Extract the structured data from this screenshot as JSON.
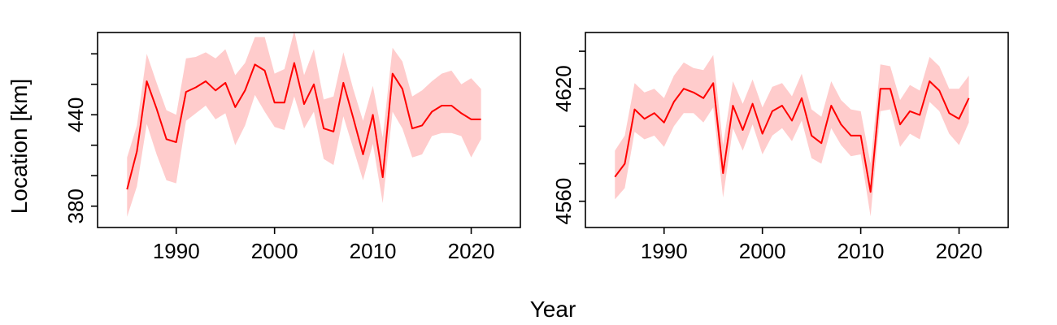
{
  "labels": {
    "xlabel": "Year",
    "ylabel": "Location [km]"
  },
  "colors": {
    "line": "#ff0000",
    "band": "#ffcccc"
  },
  "chart_data": [
    {
      "type": "line",
      "xlim": [
        1982,
        2025
      ],
      "ylim": [
        366,
        494
      ],
      "x_ticks": [
        1990,
        2000,
        2010,
        2020
      ],
      "x_tick_labels": [
        "1990",
        "2000",
        "2010",
        "2020"
      ],
      "y_ticks": [
        380,
        400,
        420,
        440,
        460,
        480
      ],
      "y_tick_labels": [
        "380",
        "",
        "",
        "440",
        "",
        ""
      ],
      "x": [
        1985,
        1986,
        1987,
        1988,
        1989,
        1990,
        1991,
        1992,
        1993,
        1994,
        1995,
        1996,
        1997,
        1998,
        1999,
        2000,
        2001,
        2002,
        2003,
        2004,
        2005,
        2006,
        2007,
        2008,
        2009,
        2010,
        2011,
        2012,
        2013,
        2014,
        2015,
        2016,
        2017,
        2018,
        2019,
        2020,
        2021
      ],
      "series": [
        {
          "values": [
            391,
            416,
            462,
            444,
            424,
            422,
            455,
            458,
            462,
            456,
            461,
            445,
            456,
            473,
            469,
            448,
            448,
            474,
            447,
            460,
            431,
            429,
            461,
            438,
            414,
            440,
            399,
            467,
            457,
            431,
            433,
            442,
            446,
            446,
            441,
            437,
            437
          ],
          "lower": [
            373,
            393,
            434,
            414,
            397,
            395,
            436,
            441,
            446,
            437,
            441,
            420,
            433,
            453,
            442,
            432,
            430,
            452,
            431,
            442,
            411,
            407,
            439,
            418,
            397,
            421,
            382,
            442,
            431,
            412,
            414,
            426,
            428,
            428,
            426,
            412,
            424
          ],
          "upper": [
            412,
            433,
            480,
            461,
            443,
            440,
            477,
            478,
            481,
            477,
            483,
            466,
            474,
            491,
            491,
            467,
            470,
            495,
            466,
            483,
            450,
            452,
            481,
            457,
            436,
            459,
            425,
            484,
            475,
            452,
            456,
            462,
            467,
            469,
            460,
            464,
            457
          ]
        }
      ]
    },
    {
      "type": "line",
      "xlim": [
        1982,
        2025
      ],
      "ylim": [
        4546,
        4650
      ],
      "x_ticks": [
        1990,
        2000,
        2010,
        2020
      ],
      "x_tick_labels": [
        "1990",
        "2000",
        "2010",
        "2020"
      ],
      "y_ticks": [
        4560,
        4580,
        4600,
        4620,
        4640
      ],
      "y_tick_labels": [
        "4560",
        "",
        "",
        "4620",
        ""
      ],
      "x": [
        1985,
        1986,
        1987,
        1988,
        1989,
        1990,
        1991,
        1992,
        1993,
        1994,
        1995,
        1996,
        1997,
        1998,
        1999,
        2000,
        2001,
        2002,
        2003,
        2004,
        2005,
        2006,
        2007,
        2008,
        2009,
        2010,
        2011,
        2012,
        2013,
        2014,
        2015,
        2016,
        2017,
        2018,
        2019,
        2020,
        2021
      ],
      "series": [
        {
          "values": [
            4573,
            4580,
            4609,
            4604,
            4607,
            4602,
            4613,
            4620,
            4618,
            4615,
            4623,
            4575,
            4611,
            4598,
            4612,
            4596,
            4608,
            4611,
            4603,
            4615,
            4595,
            4591,
            4611,
            4601,
            4595,
            4595,
            4565,
            4620,
            4620,
            4601,
            4608,
            4606,
            4624,
            4619,
            4607,
            4604,
            4615
          ],
          "lower": [
            4561,
            4567,
            4597,
            4593,
            4595,
            4589,
            4600,
            4607,
            4607,
            4602,
            4610,
            4562,
            4599,
            4587,
            4601,
            4585,
            4595,
            4599,
            4592,
            4603,
            4583,
            4580,
            4599,
            4590,
            4584,
            4585,
            4552,
            4608,
            4609,
            4589,
            4596,
            4593,
            4613,
            4608,
            4596,
            4590,
            4602
          ],
          "upper": [
            4587,
            4595,
            4623,
            4618,
            4620,
            4615,
            4627,
            4634,
            4631,
            4630,
            4638,
            4590,
            4624,
            4612,
            4625,
            4610,
            4621,
            4623,
            4616,
            4628,
            4609,
            4605,
            4624,
            4614,
            4609,
            4608,
            4580,
            4633,
            4632,
            4614,
            4622,
            4619,
            4637,
            4632,
            4620,
            4620,
            4627
          ]
        }
      ]
    }
  ]
}
